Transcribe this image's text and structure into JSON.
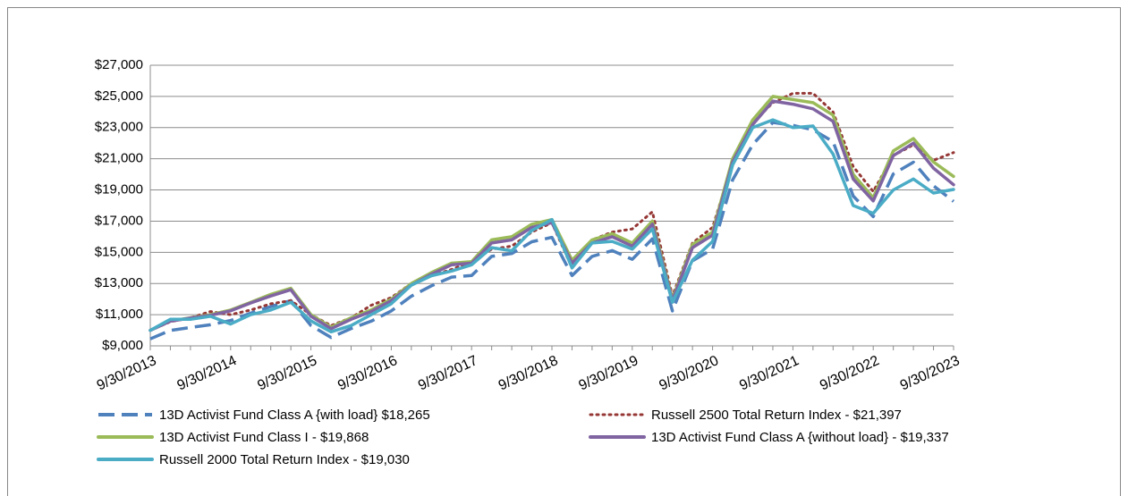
{
  "chart_data": {
    "type": "line",
    "categories": [
      "9/30/2013",
      null,
      null,
      null,
      "9/30/2014",
      null,
      null,
      null,
      "9/30/2015",
      null,
      null,
      null,
      "9/30/2016",
      null,
      null,
      null,
      "9/30/2017",
      null,
      null,
      null,
      "9/30/2018",
      null,
      null,
      null,
      "9/30/2019",
      null,
      null,
      null,
      "9/30/2020",
      null,
      null,
      null,
      "9/30/2021",
      null,
      null,
      null,
      "9/30/2022",
      null,
      null,
      null,
      "9/30/2023"
    ],
    "series": [
      {
        "name": "13D Activist Fund Class A {with load} $18,265",
        "color": "#4f81bd",
        "style": "dashed",
        "values": [
          9446,
          9990,
          10180,
          10350,
          10630,
          11100,
          11520,
          11900,
          10300,
          9540,
          10110,
          10580,
          11240,
          12190,
          12850,
          13410,
          13510,
          14740,
          14920,
          15680,
          15960,
          13510,
          14740,
          15110,
          14550,
          15870,
          11240,
          14450,
          15210,
          19650,
          21910,
          23330,
          23140,
          22860,
          22100,
          18610,
          17290,
          20030,
          20780,
          19270,
          18265
        ]
      },
      {
        "name": "Russell 2500 Total Return Index - $21,397",
        "color": "#953735",
        "style": "dotted",
        "values": [
          10000,
          10550,
          10800,
          11200,
          11000,
          11300,
          11700,
          11900,
          11000,
          10300,
          10800,
          11600,
          12100,
          13000,
          13500,
          13900,
          14400,
          15200,
          15400,
          16300,
          16900,
          14000,
          15800,
          16300,
          16500,
          17600,
          12200,
          15600,
          16600,
          20700,
          23300,
          24600,
          25200,
          25200,
          24000,
          20500,
          18900,
          21200,
          21900,
          20900,
          21397
        ]
      },
      {
        "name": "13D Activist Fund Class I - $19,868",
        "color": "#9bbb59",
        "style": "solid",
        "values": [
          10000,
          10600,
          10800,
          11000,
          11300,
          11800,
          12300,
          12700,
          11000,
          10200,
          10800,
          11300,
          12000,
          13000,
          13700,
          14300,
          14400,
          15800,
          16000,
          16800,
          17100,
          14500,
          15800,
          16200,
          15600,
          17000,
          12000,
          15500,
          16300,
          21000,
          23500,
          25000,
          24800,
          24600,
          23800,
          20000,
          18500,
          21500,
          22300,
          20800,
          19868
        ]
      },
      {
        "name": "13D Activist Fund Class A {without load} - $19,337",
        "color": "#8064a2",
        "style": "solid",
        "values": [
          10000,
          10580,
          10780,
          10960,
          11250,
          11750,
          12200,
          12600,
          10900,
          10100,
          10700,
          11200,
          11900,
          12900,
          13600,
          14200,
          14300,
          15600,
          15800,
          16600,
          16900,
          14300,
          15600,
          16000,
          15400,
          16800,
          11900,
          15300,
          16100,
          20800,
          23200,
          24700,
          24500,
          24200,
          23400,
          19700,
          18300,
          21200,
          22000,
          20400,
          19337
        ]
      },
      {
        "name": "Russell  2000 Total Return Index - $19,030",
        "color": "#4bacc6",
        "style": "solid",
        "values": [
          10000,
          10700,
          10700,
          10900,
          10400,
          11000,
          11300,
          11800,
          10600,
          9900,
          10300,
          11000,
          11700,
          12900,
          13500,
          13800,
          14200,
          15300,
          15100,
          16400,
          17100,
          14000,
          15600,
          15700,
          15200,
          16500,
          11800,
          14500,
          15700,
          20600,
          23000,
          23500,
          23000,
          23100,
          21300,
          18000,
          17500,
          19000,
          19700,
          18800,
          19030
        ]
      }
    ],
    "ylim": [
      9000,
      27000
    ],
    "yticks": [
      {
        "value": 9000,
        "label": "$9,000"
      },
      {
        "value": 11000,
        "label": "$11,000"
      },
      {
        "value": 13000,
        "label": "$13,000"
      },
      {
        "value": 15000,
        "label": "$15,000"
      },
      {
        "value": 17000,
        "label": "$17,000"
      },
      {
        "value": 19000,
        "label": "$19,000"
      },
      {
        "value": 21000,
        "label": "$21,000"
      },
      {
        "value": 23000,
        "label": "$23,000"
      },
      {
        "value": 25000,
        "label": "$25,000"
      },
      {
        "value": 27000,
        "label": "$27,000"
      }
    ],
    "grid": true
  }
}
